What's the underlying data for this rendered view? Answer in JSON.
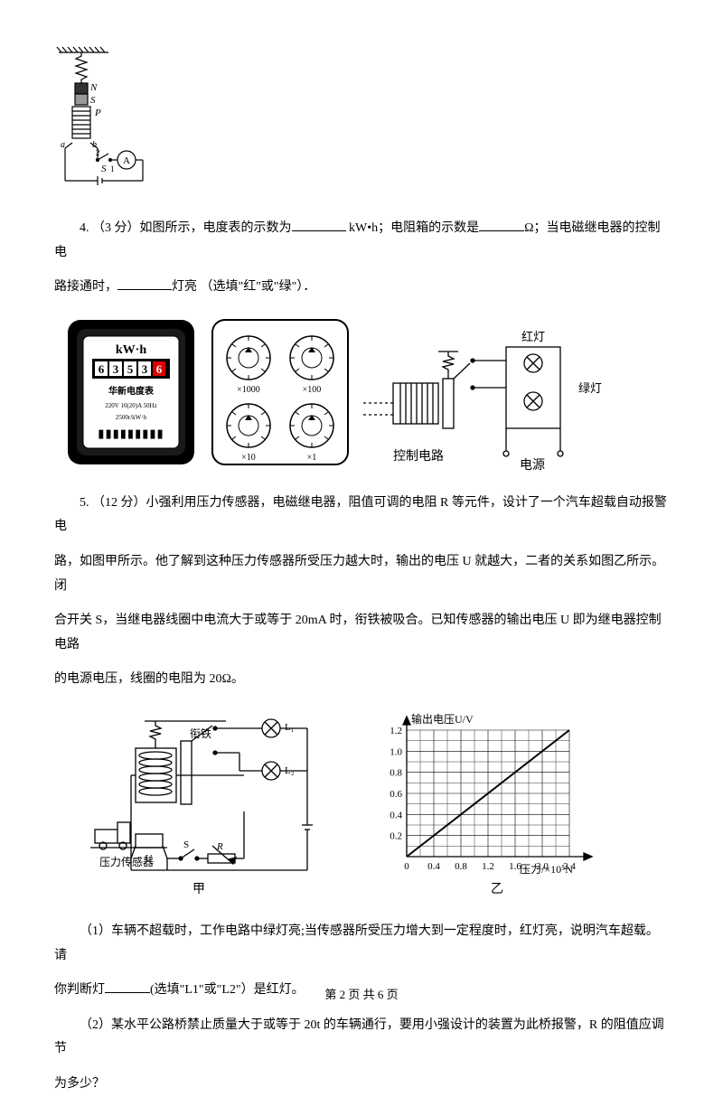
{
  "fig3": {
    "stroke": "#000000",
    "bg": "#ffffff",
    "labels": {
      "N": "N",
      "S": "S",
      "P": "P",
      "a": "a",
      "bprime": "b",
      "switch": "S",
      "t2": "2",
      "t1": "1",
      "ammeter": "A"
    }
  },
  "q4": {
    "prefix": "4. （3 分）如图所示，电度表的示数为",
    "unit1": " kW•h；电阻箱的示数是",
    "unit2": "Ω；当电磁继电器的控制电",
    "line2a": "路接通时，",
    "line2b": "灯亮 （选填\"红\"或\"绿\"）．"
  },
  "fig4": {
    "meter": {
      "border": "#000000",
      "bg": "#ffffff",
      "unit": "kW·h",
      "digits": [
        "6",
        "3",
        "5",
        "3",
        "6"
      ],
      "line1": "华新电度表",
      "line2": "220V  10(20)A   50Hz",
      "line3": "2500r/kW·h",
      "barcode": "▮▮▮▮▮▮▮▮▮"
    },
    "rbox": {
      "border": "#000000",
      "mult": [
        "×1000",
        "×100",
        "×10",
        "×1"
      ]
    },
    "relay": {
      "labels": {
        "red": "红灯",
        "green": "绿灯",
        "ctrl": "控制电路",
        "power": "电源"
      }
    }
  },
  "q5": {
    "line1": "5. （12 分）小强利用压力传感器，电磁继电器，阻值可调的电阻 R 等元件，设计了一个汽车超载自动报警电",
    "line2": "路，如图甲所示。他了解到这种压力传感器所受压力越大时，输出的电压 U 就越大，二者的关系如图乙所示。闭",
    "line3": "合开关 S，当继电器线圈中电流大于或等于 20mA 时，衔铁被吸合。已知传感器的输出电压 U 即为继电器控制电路",
    "line4": "的电源电压，线圈的电阻为 20Ω。"
  },
  "fig5": {
    "left": {
      "labels": {
        "arm": "衔铁",
        "sensor": "压力传感器",
        "U": "U",
        "S": "S",
        "R": "R",
        "L1": "L₁",
        "L2": "L₂",
        "cap": "甲"
      }
    },
    "chart": {
      "ylabel": "输出电压U/V",
      "xlabel": "压力/×10⁵N",
      "xlim": [
        0,
        2.4
      ],
      "ylim": [
        0,
        1.2
      ],
      "xticks": [
        "0",
        "0.4",
        "0.8",
        "1.2",
        "1.6",
        "2.0",
        "2.4"
      ],
      "yticks": [
        "0.2",
        "0.4",
        "0.6",
        "0.8",
        "1.0",
        "1.2"
      ],
      "grid_color": "#000000",
      "line_color": "#000000",
      "cap": "乙"
    }
  },
  "q5sub": {
    "s1a": "（1）车辆不超载时，工作电路中绿灯亮;当传感器所受压力增大到一定程度时，红灯亮，说明汽车超载。请",
    "s1b": "你判断灯",
    "s1c": "(选填\"L1\"或\"L2\"）是红灯。",
    "s2a": "（2）某水平公路桥禁止质量大于或等于 20t 的车辆通行，要用小强设计的装置为此桥报警，R 的阻值应调节",
    "s2b": "为多少？"
  },
  "footer": {
    "text": "第 2 页 共 6 页"
  }
}
